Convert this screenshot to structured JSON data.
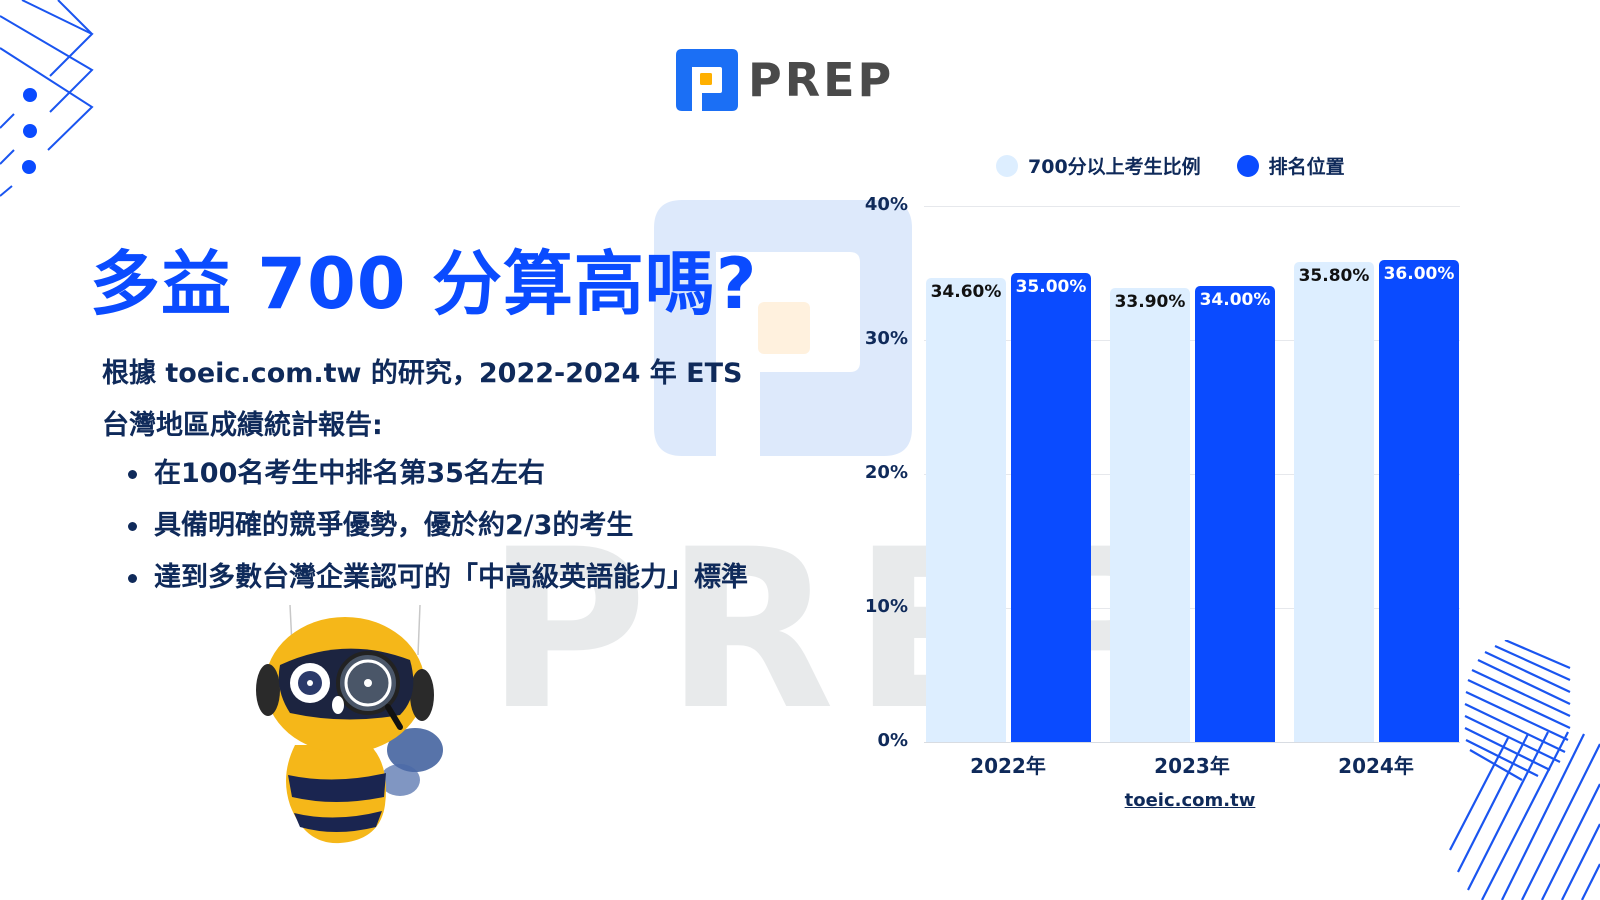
{
  "brand": {
    "logo_text": "PREP",
    "colors": {
      "primary": "#0a4bff",
      "logo_blue": "#1b6ff5",
      "logo_orange": "#ffb000",
      "navy": "#0f2a5a",
      "light_bar": "#ddeeff"
    }
  },
  "title": "多益 700 分算高嗎?",
  "intro": {
    "line1": "根據 toeic.com.tw 的研究，2022-2024 年 ETS",
    "line2": "台灣地區成績統計報告:"
  },
  "bullets": [
    "在100名考生中排名第35名左右",
    "具備明確的競爭優勢，優於約2/3的考生",
    "達到多數台灣企業認可的「中高級英語能力」標準"
  ],
  "watermark": {
    "text": "PREP"
  },
  "mascot": {
    "icon": "bee-robot-with-magnifying-glass"
  },
  "chart_data": {
    "type": "bar",
    "title": "",
    "categories": [
      "2022年",
      "2023年",
      "2024年"
    ],
    "series": [
      {
        "name": "700分以上考生比例",
        "values": [
          34.6,
          33.9,
          35.8
        ],
        "labels": [
          "34.60%",
          "33.90%",
          "35.80%"
        ],
        "color": "#ddeeff",
        "label_color": "#111111"
      },
      {
        "name": "排名位置",
        "values": [
          35.0,
          34.0,
          36.0
        ],
        "labels": [
          "35.00%",
          "34.00%",
          "36.00%"
        ],
        "color": "#0a4bff",
        "label_color": "#ffffff"
      }
    ],
    "xlabel": "",
    "ylabel": "",
    "yticks": [
      "0%",
      "10%",
      "20%",
      "30%",
      "40%"
    ],
    "ylim": [
      0,
      40
    ],
    "grid": true,
    "legend_position": "top",
    "source": "toeic.com.tw"
  }
}
